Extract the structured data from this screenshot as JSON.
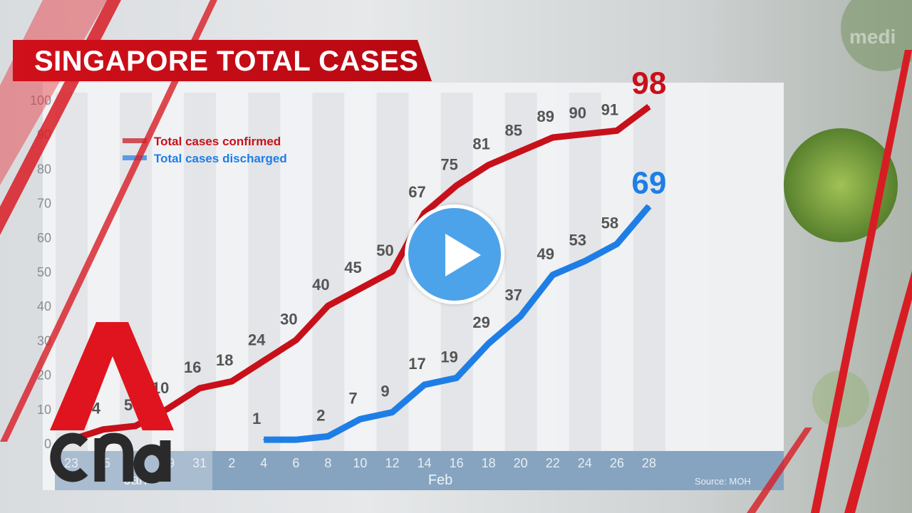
{
  "title": "SINGAPORE TOTAL CASES",
  "watermark": "medi",
  "play_button_label": "Play video",
  "logo_text": "cna",
  "colors": {
    "confirmed": "#c8101a",
    "discharged": "#1e7ee6",
    "title_bg": "#c60c16",
    "axis_band": "#86a4c0",
    "play": "#4da3ea"
  },
  "icons": {
    "play": "play-icon",
    "logo": "cna-logo"
  },
  "chart_data": {
    "type": "line",
    "title": "SINGAPORE TOTAL CASES",
    "source": "Source: MOH",
    "x": [
      "23",
      "25",
      "27",
      "29",
      "31",
      "2",
      "4",
      "6",
      "8",
      "10",
      "12",
      "14",
      "16",
      "18",
      "20",
      "22",
      "24",
      "26",
      "28"
    ],
    "months": [
      {
        "label": "Jan",
        "from": 0,
        "to": 4
      },
      {
        "label": "Feb",
        "from": 5,
        "to": 18
      }
    ],
    "yticks": [
      0,
      10,
      20,
      30,
      40,
      50,
      60,
      70,
      80,
      90,
      100
    ],
    "ylim": [
      0,
      100
    ],
    "grid": "vertical stripes",
    "legend_position": "top-left",
    "series": [
      {
        "name": "Total cases confirmed",
        "color": "#c8101a",
        "values": [
          1,
          4,
          5,
          10,
          16,
          18,
          24,
          30,
          40,
          45,
          50,
          67,
          75,
          81,
          85,
          89,
          90,
          91,
          98
        ]
      },
      {
        "name": "Total cases discharged",
        "color": "#1e7ee6",
        "values": [
          null,
          null,
          null,
          null,
          null,
          null,
          1,
          1,
          2,
          7,
          9,
          17,
          19,
          29,
          37,
          49,
          53,
          58,
          69
        ]
      }
    ]
  }
}
